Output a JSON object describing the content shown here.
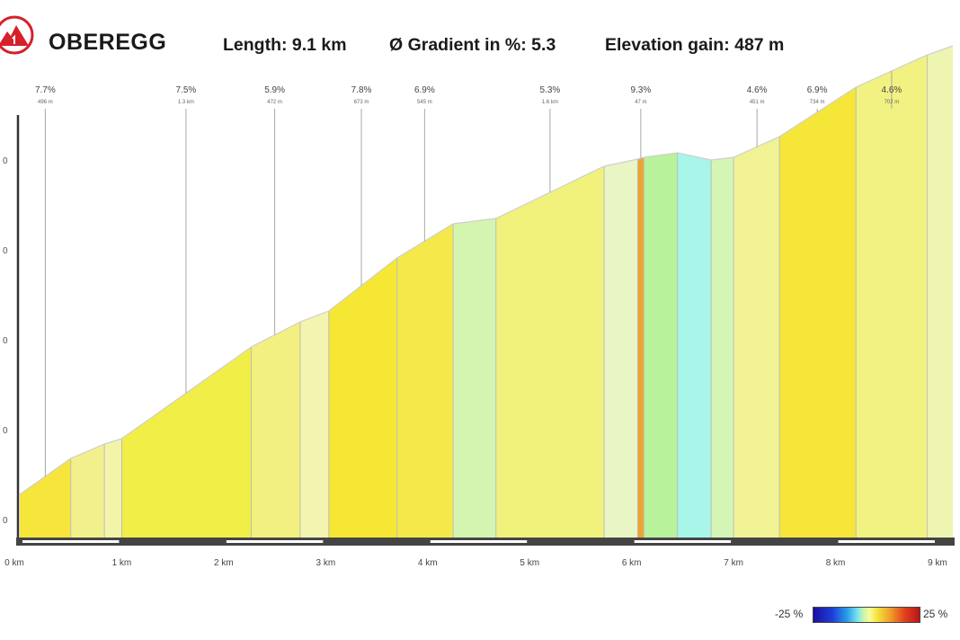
{
  "header": {
    "title": "OBEREGG",
    "length": "Length: 9.1 km",
    "gradient": "Ø Gradient in %: 5.3",
    "elevation_gain": "Elevation gain: 487 m"
  },
  "legend": {
    "min_label": "-25 %",
    "max_label": "25 %"
  },
  "colors": {
    "brand_red": "#d6202a",
    "axis": "#333333",
    "marker_line": "#a8a8a8"
  },
  "chart_data": {
    "type": "area",
    "title": "OBEREGG",
    "xlabel": "",
    "ylabel": "",
    "xlim": [
      0,
      9.15
    ],
    "ylim": [
      0,
      520
    ],
    "y_tick_values": [
      20,
      120,
      220,
      320,
      420
    ],
    "y_tick_labels": [
      "0",
      "0",
      "0",
      "0",
      "0"
    ],
    "x_ticks": [
      "0 km",
      "1 km",
      "2 km",
      "3 km",
      "4 km",
      "5 km",
      "6 km",
      "7 km",
      "8 km",
      "9 km"
    ],
    "profile": [
      {
        "x": 0,
        "y": 48
      },
      {
        "x": 0.5,
        "y": 88
      },
      {
        "x": 0.83,
        "y": 104
      },
      {
        "x": 1.0,
        "y": 110
      },
      {
        "x": 2.27,
        "y": 212
      },
      {
        "x": 2.75,
        "y": 240
      },
      {
        "x": 3.03,
        "y": 252
      },
      {
        "x": 3.7,
        "y": 311
      },
      {
        "x": 4.25,
        "y": 349
      },
      {
        "x": 4.67,
        "y": 355
      },
      {
        "x": 5.73,
        "y": 413
      },
      {
        "x": 6.06,
        "y": 421
      },
      {
        "x": 6.12,
        "y": 423
      },
      {
        "x": 6.45,
        "y": 428
      },
      {
        "x": 6.78,
        "y": 420
      },
      {
        "x": 7.0,
        "y": 423
      },
      {
        "x": 7.45,
        "y": 446
      },
      {
        "x": 8.2,
        "y": 501
      },
      {
        "x": 8.9,
        "y": 537
      },
      {
        "x": 9.15,
        "y": 547
      }
    ],
    "segment_colors": [
      "#f6e63c",
      "#f2f08c",
      "#f3f4a8",
      "#f2ee48",
      "#f2f080",
      "#f3f4b0",
      "#f5e734",
      "#f5e84a",
      "#d4f5b0",
      "#f0f27c",
      "#eaf5c4",
      "#f0a32e",
      "#b8f29a",
      "#a8f5ea",
      "#d4f5b6",
      "#f1f294",
      "#f6e63a",
      "#f1f282",
      "#eef5b0"
    ],
    "annotations": [
      {
        "x": 0.25,
        "gradient": "7.7%",
        "sub": "496 m"
      },
      {
        "x": 1.63,
        "gradient": "7.5%",
        "sub": "1.3 km"
      },
      {
        "x": 2.5,
        "gradient": "5.9%",
        "sub": "472 m"
      },
      {
        "x": 3.35,
        "gradient": "7.8%",
        "sub": "673 m"
      },
      {
        "x": 3.97,
        "gradient": "6.9%",
        "sub": "545 m"
      },
      {
        "x": 5.2,
        "gradient": "5.3%",
        "sub": "1.6 km"
      },
      {
        "x": 6.09,
        "gradient": "9.3%",
        "sub": "47 m"
      },
      {
        "x": 7.23,
        "gradient": "4.6%",
        "sub": "451 m"
      },
      {
        "x": 7.82,
        "gradient": "6.9%",
        "sub": "734 m"
      },
      {
        "x": 8.55,
        "gradient": "4.6%",
        "sub": "702 m"
      }
    ]
  }
}
